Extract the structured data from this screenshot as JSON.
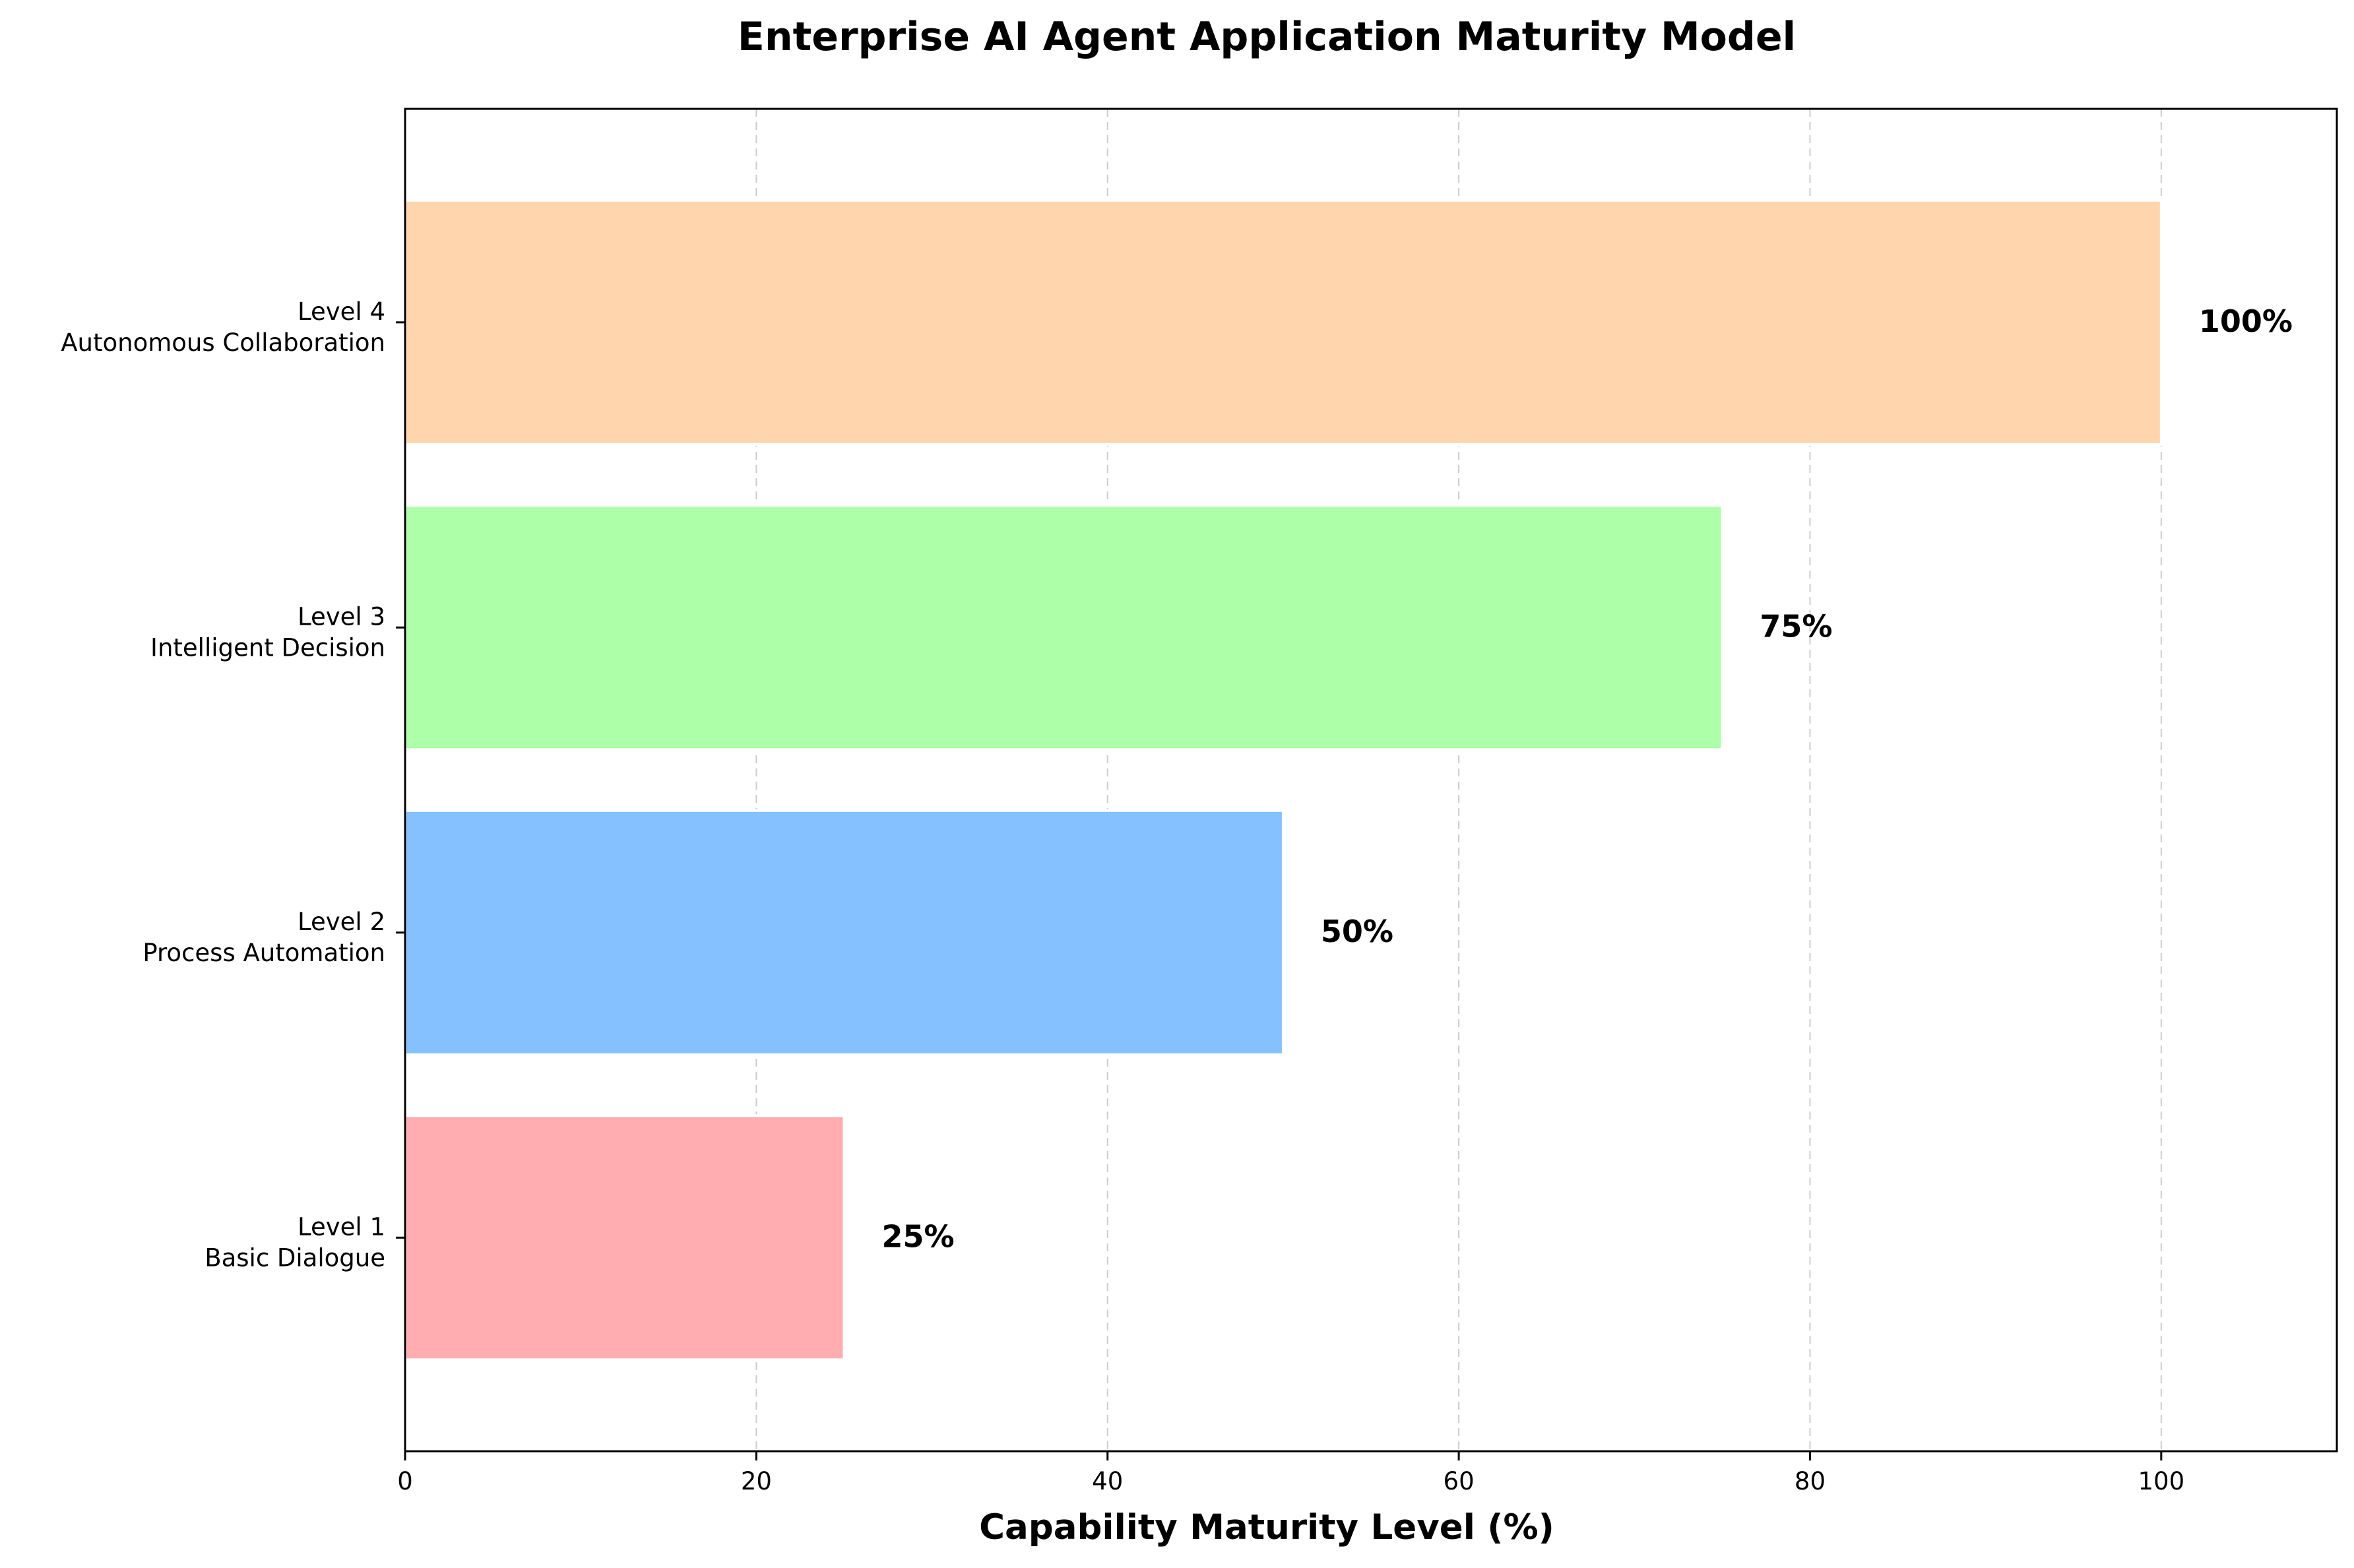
{
  "chart_data": {
    "type": "bar",
    "orientation": "horizontal",
    "title": "Enterprise AI Agent Application Maturity Model",
    "xlabel": "Capability Maturity Level (%)",
    "ylabel": "",
    "xlim": [
      0,
      110
    ],
    "xticks": [
      0,
      20,
      40,
      60,
      80,
      100
    ],
    "grid": "x-dashed",
    "categories": [
      {
        "line1": "Level 1",
        "line2": "Basic Dialogue"
      },
      {
        "line1": "Level 2",
        "line2": "Process Automation"
      },
      {
        "line1": "Level 3",
        "line2": "Intelligent Decision"
      },
      {
        "line1": "Level 4",
        "line2": "Autonomous Collaboration"
      }
    ],
    "values": [
      25,
      50,
      75,
      100
    ],
    "value_labels": [
      "25%",
      "50%",
      "75%",
      "100%"
    ],
    "colors": [
      "#FFADB0",
      "#85C1FF",
      "#ADFFA8",
      "#FFD5AE"
    ]
  }
}
